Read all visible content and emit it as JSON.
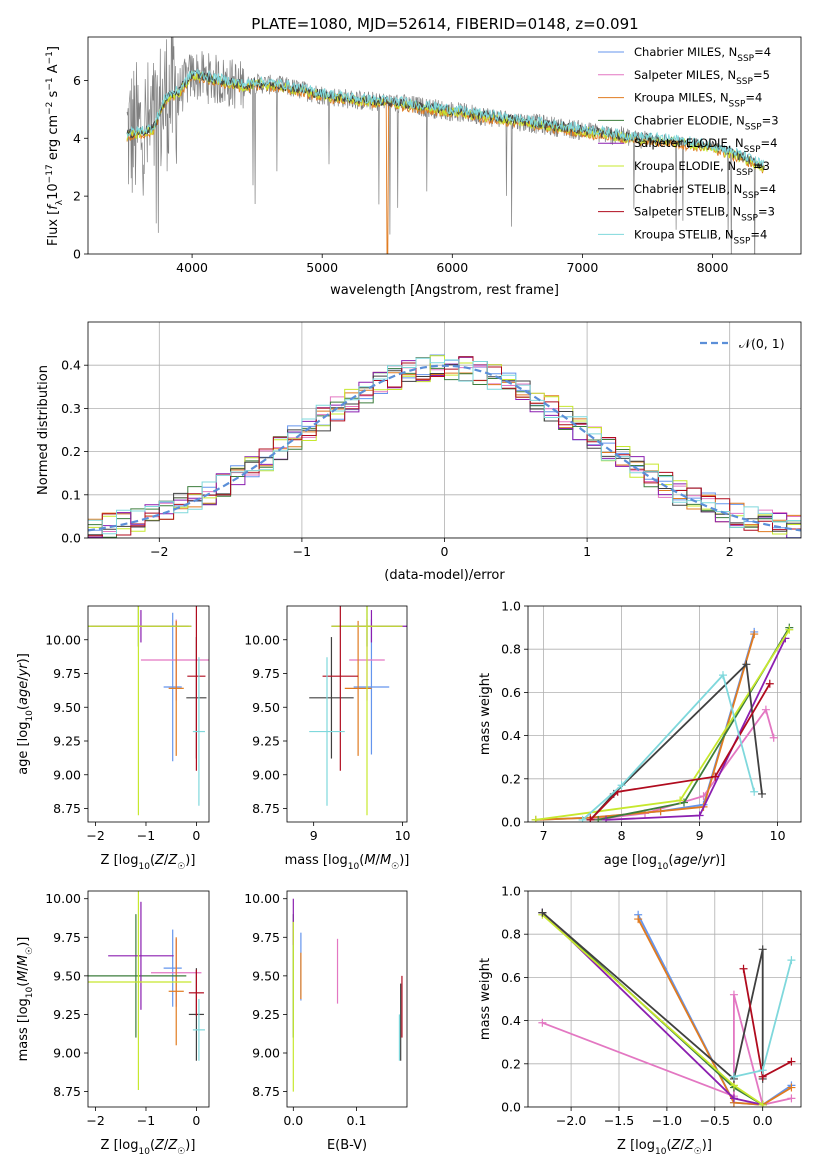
{
  "figure": {
    "title": "PLATE=1080, MJD=52614, FIBERID=0148, z=0.091"
  },
  "colors": {
    "Chabrier MILES": "#6495ed",
    "Salpeter MILES": "#e377c2",
    "Kroupa MILES": "#e07b20",
    "Chabrier ELODIE": "#3c7d3c",
    "Salpeter ELODIE": "#8b1fb0",
    "Kroupa ELODIE": "#c7e82e",
    "Chabrier STELIB": "#404040",
    "Salpeter STELIB": "#b00b1e",
    "Kroupa STELIB": "#7fd8dc",
    "data": "#808080",
    "normal": "#5b8fd8"
  },
  "chart_data": [
    {
      "id": "spectrum",
      "type": "line",
      "xlabel": "wavelength [Angstrom, rest frame]",
      "ylabel": "Flux [f_λ 10^-17 erg cm^-2 s^-1 A^-1]",
      "xlim": [
        3200,
        8680
      ],
      "ylim": [
        0,
        7.5
      ],
      "xticks": [
        4000,
        5000,
        6000,
        7000,
        8000
      ],
      "yticks": [
        0,
        2,
        4,
        6
      ],
      "legend_position": "top-right",
      "series": [
        {
          "name": "Chabrier MILES, N_SSP=4",
          "label_main": "Chabrier MILES, N",
          "label_sub": "SSP",
          "label_tail": "=4"
        },
        {
          "name": "Salpeter MILES, N_SSP=5",
          "label_main": "Salpeter MILES, N",
          "label_sub": "SSP",
          "label_tail": "=5"
        },
        {
          "name": "Kroupa MILES, N_SSP=4",
          "label_main": "Kroupa MILES, N",
          "label_sub": "SSP",
          "label_tail": "=4"
        },
        {
          "name": "Chabrier ELODIE, N_SSP=3",
          "label_main": "Chabrier ELODIE, N",
          "label_sub": "SSP",
          "label_tail": "=3"
        },
        {
          "name": "Salpeter ELODIE, N_SSP=4",
          "label_main": "Salpeter ELODIE, N",
          "label_sub": "SSP",
          "label_tail": "=4"
        },
        {
          "name": "Kroupa ELODIE, N_SSP=3",
          "label_main": "Kroupa ELODIE, N",
          "label_sub": "SSP",
          "label_tail": "=3"
        },
        {
          "name": "Chabrier STELIB, N_SSP=4",
          "label_main": "Chabrier STELIB, N",
          "label_sub": "SSP",
          "label_tail": "=4"
        },
        {
          "name": "Salpeter STELIB, N_SSP=3",
          "label_main": "Salpeter STELIB, N",
          "label_sub": "SSP",
          "label_tail": "=3"
        },
        {
          "name": "Kroupa STELIB, N_SSP=4",
          "label_main": "Kroupa STELIB, N",
          "label_sub": "SSP",
          "label_tail": "=4"
        }
      ],
      "continuum": {
        "x": [
          3500,
          3600,
          3700,
          3800,
          3900,
          4000,
          4100,
          4200,
          4300,
          4400,
          4500,
          4700,
          5000,
          5300,
          5600,
          5900,
          6200,
          6500,
          6800,
          7100,
          7400,
          7700,
          8000,
          8200,
          8400
        ],
        "y": [
          4.1,
          4.2,
          4.3,
          5.4,
          5.6,
          6.2,
          6.1,
          6.0,
          5.9,
          5.8,
          5.9,
          5.8,
          5.5,
          5.3,
          5.2,
          5.0,
          4.8,
          4.6,
          4.4,
          4.2,
          4.0,
          3.9,
          3.7,
          3.4,
          3.0
        ]
      }
    },
    {
      "id": "residuals",
      "type": "histogram",
      "xlabel": "(data-model)/error",
      "ylabel": "Normed distribution",
      "xlim": [
        -2.5,
        2.5
      ],
      "ylim": [
        0,
        0.5
      ],
      "xticks": [
        -2,
        -1,
        0,
        1,
        2
      ],
      "yticks": [
        0.0,
        0.1,
        0.2,
        0.3,
        0.4
      ],
      "grid": true,
      "legend_position": "top-right",
      "normal_label": "𝒩(0, 1)",
      "bins": {
        "start": -2.5,
        "width": 0.1,
        "count": 50
      }
    },
    {
      "id": "age-vs-Z",
      "type": "errorbar",
      "xlabel": "Z [log10(Z/Z☉)]",
      "ylabel": "age [log10(age/yr)]",
      "xlim": [
        -2.15,
        0.25
      ],
      "ylim": [
        8.65,
        10.25
      ],
      "xticks": [
        -2,
        -1,
        0
      ],
      "yticks": [
        8.75,
        9.0,
        9.25,
        9.5,
        9.75,
        10.0
      ],
      "points": [
        {
          "model": "Chabrier MILES",
          "x": -0.47,
          "y": 9.65,
          "xerr": 0.18,
          "yerr": 0.55
        },
        {
          "model": "Salpeter MILES",
          "x": -0.4,
          "y": 9.85,
          "xerr": 0.7,
          "yerr": 0.3
        },
        {
          "model": "Kroupa MILES",
          "x": -0.4,
          "y": 9.64,
          "xerr": 0.15,
          "yerr": 0.5
        },
        {
          "model": "Chabrier ELODIE",
          "x": -1.15,
          "y": 10.1,
          "xerr": 1.0,
          "yerr": 0.15
        },
        {
          "model": "Salpeter ELODIE",
          "x": -1.1,
          "y": 10.1,
          "xerr": 1.0,
          "yerr": 0.12
        },
        {
          "model": "Kroupa ELODIE",
          "x": -1.15,
          "y": 10.1,
          "xerr": 1.05,
          "yerr": 1.4
        },
        {
          "model": "Chabrier STELIB",
          "x": 0.0,
          "y": 9.57,
          "xerr": 0.2,
          "yerr": 0.45
        },
        {
          "model": "Salpeter STELIB",
          "x": 0.0,
          "y": 9.73,
          "xerr": 0.18,
          "yerr": 0.7
        },
        {
          "model": "Kroupa STELIB",
          "x": 0.05,
          "y": 9.32,
          "xerr": 0.12,
          "yerr": 0.55
        }
      ]
    },
    {
      "id": "age-vs-mass",
      "type": "errorbar",
      "xlabel": "mass [log10(M/M☉)]",
      "ylabel": "",
      "xlim": [
        8.7,
        10.05
      ],
      "ylim": [
        8.65,
        10.25
      ],
      "xticks": [
        9,
        10
      ],
      "yticks": [
        8.75,
        9.0,
        9.25,
        9.5,
        9.75,
        10.0
      ],
      "points": [
        {
          "model": "Chabrier MILES",
          "x": 9.65,
          "y": 9.65,
          "xerr": 0.2,
          "yerr": 0.5
        },
        {
          "model": "Salpeter MILES",
          "x": 9.6,
          "y": 9.85,
          "xerr": 0.2,
          "yerr": 0.3
        },
        {
          "model": "Kroupa MILES",
          "x": 9.5,
          "y": 9.64,
          "xerr": 0.15,
          "yerr": 0.5
        },
        {
          "model": "Chabrier ELODIE",
          "x": 9.6,
          "y": 10.1,
          "xerr": 0.4,
          "yerr": 0.15
        },
        {
          "model": "Salpeter ELODIE",
          "x": 9.65,
          "y": 10.1,
          "xerr": 0.45,
          "yerr": 0.12
        },
        {
          "model": "Kroupa ELODIE",
          "x": 9.6,
          "y": 10.1,
          "xerr": 0.4,
          "yerr": 1.4
        },
        {
          "model": "Chabrier STELIB",
          "x": 9.2,
          "y": 9.57,
          "xerr": 0.25,
          "yerr": 0.45
        },
        {
          "model": "Salpeter STELIB",
          "x": 9.3,
          "y": 9.73,
          "xerr": 0.2,
          "yerr": 0.7
        },
        {
          "model": "Kroupa STELIB",
          "x": 9.15,
          "y": 9.32,
          "xerr": 0.2,
          "yerr": 0.55
        }
      ]
    },
    {
      "id": "weight-vs-age",
      "type": "line",
      "xlabel": "age  [log10(age/yr)]",
      "ylabel": "mass weight",
      "xlim": [
        6.8,
        10.3
      ],
      "ylim": [
        0,
        1
      ],
      "xticks": [
        7,
        8,
        9,
        10
      ],
      "yticks": [
        0.0,
        0.2,
        0.4,
        0.6,
        0.8,
        1.0
      ],
      "grid": true,
      "series": [
        {
          "model": "Chabrier MILES",
          "x": [
            6.9,
            7.6,
            8.5,
            9.05,
            9.7
          ],
          "y": [
            0.01,
            0.02,
            0.05,
            0.08,
            0.88
          ]
        },
        {
          "model": "Salpeter MILES",
          "x": [
            7.6,
            8.3,
            9.05,
            9.85,
            9.95
          ],
          "y": [
            0.01,
            0.04,
            0.12,
            0.52,
            0.39
          ]
        },
        {
          "model": "Kroupa MILES",
          "x": [
            6.9,
            7.6,
            8.5,
            9.05,
            9.7
          ],
          "y": [
            0.01,
            0.02,
            0.05,
            0.07,
            0.87
          ]
        },
        {
          "model": "Chabrier ELODIE",
          "x": [
            7.7,
            8.8,
            10.15
          ],
          "y": [
            0.01,
            0.09,
            0.9
          ]
        },
        {
          "model": "Salpeter ELODIE",
          "x": [
            7.8,
            9.0,
            10.1
          ],
          "y": [
            0.01,
            0.03,
            0.85
          ]
        },
        {
          "model": "Kroupa ELODIE",
          "x": [
            6.9,
            8.75,
            10.15
          ],
          "y": [
            0.01,
            0.1,
            0.89
          ]
        },
        {
          "model": "Chabrier STELIB",
          "x": [
            7.6,
            7.9,
            9.6,
            9.8
          ],
          "y": [
            0.01,
            0.13,
            0.73,
            0.13
          ]
        },
        {
          "model": "Salpeter STELIB",
          "x": [
            7.6,
            7.95,
            9.2,
            9.9
          ],
          "y": [
            0.01,
            0.14,
            0.21,
            0.64
          ]
        },
        {
          "model": "Kroupa STELIB",
          "x": [
            7.5,
            8.0,
            9.3,
            9.7
          ],
          "y": [
            0.01,
            0.17,
            0.68,
            0.14
          ]
        }
      ]
    },
    {
      "id": "mass-vs-Z",
      "type": "errorbar",
      "xlabel": "Z [log10(Z/Z☉)]",
      "ylabel": "mass [log10(M/M☉)]",
      "xlim": [
        -2.15,
        0.25
      ],
      "ylim": [
        8.65,
        10.05
      ],
      "xticks": [
        -2,
        -1,
        0
      ],
      "yticks": [
        8.75,
        9.0,
        9.25,
        9.5,
        9.75,
        10.0
      ],
      "points": [
        {
          "model": "Chabrier MILES",
          "x": -0.47,
          "y": 9.55,
          "xerr": 0.18,
          "yerr": 0.25
        },
        {
          "model": "Salpeter MILES",
          "x": -0.4,
          "y": 9.52,
          "xerr": 0.5,
          "yerr": 0.22
        },
        {
          "model": "Kroupa MILES",
          "x": -0.4,
          "y": 9.4,
          "xerr": 0.15,
          "yerr": 0.35
        },
        {
          "model": "Chabrier ELODIE",
          "x": -1.2,
          "y": 9.5,
          "xerr": 1.0,
          "yerr": 0.4
        },
        {
          "model": "Salpeter ELODIE",
          "x": -1.1,
          "y": 9.63,
          "xerr": 0.65,
          "yerr": 0.35
        },
        {
          "model": "Kroupa ELODIE",
          "x": -1.15,
          "y": 9.46,
          "xerr": 1.05,
          "yerr": 0.7
        },
        {
          "model": "Chabrier STELIB",
          "x": 0.0,
          "y": 9.25,
          "xerr": 0.15,
          "yerr": 0.3
        },
        {
          "model": "Salpeter STELIB",
          "x": 0.0,
          "y": 9.39,
          "xerr": 0.15,
          "yerr": 0.15
        },
        {
          "model": "Kroupa STELIB",
          "x": 0.05,
          "y": 9.15,
          "xerr": 0.12,
          "yerr": 0.2
        }
      ]
    },
    {
      "id": "mass-vs-ebv",
      "type": "errorbar",
      "xlabel": "E(B-V)",
      "ylabel": "",
      "xlim": [
        -0.01,
        0.18
      ],
      "ylim": [
        8.65,
        10.05
      ],
      "xticks": [
        0.0,
        0.1
      ],
      "yticks": [
        8.75,
        9.0,
        9.25,
        9.5,
        9.75,
        10.0
      ],
      "points": [
        {
          "model": "Chabrier MILES",
          "x": 0.012,
          "y": 9.56,
          "xerr": 0,
          "yerr": 0.22
        },
        {
          "model": "Salpeter MILES",
          "x": 0.07,
          "y": 9.53,
          "xerr": 0,
          "yerr": 0.21
        },
        {
          "model": "Kroupa MILES",
          "x": 0.012,
          "y": 9.5,
          "xerr": 0,
          "yerr": 0.15
        },
        {
          "model": "Chabrier ELODIE",
          "x": 0.0,
          "y": 9.5,
          "xerr": 0,
          "yerr": 0.4
        },
        {
          "model": "Salpeter ELODIE",
          "x": 0.0,
          "y": 9.85,
          "xerr": 0,
          "yerr": 0.15
        },
        {
          "model": "Kroupa ELODIE",
          "x": 0.0,
          "y": 9.3,
          "xerr": 0,
          "yerr": 0.55
        },
        {
          "model": "Chabrier STELIB",
          "x": 0.17,
          "y": 9.2,
          "xerr": 0,
          "yerr": 0.25
        },
        {
          "model": "Salpeter STELIB",
          "x": 0.172,
          "y": 9.3,
          "xerr": 0,
          "yerr": 0.2
        },
        {
          "model": "Kroupa STELIB",
          "x": 0.168,
          "y": 9.1,
          "xerr": 0,
          "yerr": 0.15
        }
      ]
    },
    {
      "id": "weight-vs-Z",
      "type": "line",
      "xlabel": "Z [log10(Z/Z☉)]",
      "ylabel": "mass weight",
      "xlim": [
        -2.45,
        0.4
      ],
      "ylim": [
        0,
        1
      ],
      "xticks": [
        -2.0,
        -1.5,
        -1.0,
        -0.5,
        0.0
      ],
      "yticks": [
        0.0,
        0.2,
        0.4,
        0.6,
        0.8,
        1.0
      ],
      "grid": true,
      "series": [
        {
          "model": "Chabrier MILES",
          "x": [
            -1.3,
            -0.3,
            0.0,
            0.3
          ],
          "y": [
            0.89,
            0.02,
            0.01,
            0.1
          ]
        },
        {
          "model": "Salpeter MILES",
          "x": [
            -2.3,
            -0.3,
            -0.3,
            0.0,
            0.3
          ],
          "y": [
            0.39,
            0.05,
            0.52,
            0.01,
            0.04
          ]
        },
        {
          "model": "Kroupa MILES",
          "x": [
            -1.3,
            -0.3,
            0.0,
            0.3
          ],
          "y": [
            0.87,
            0.02,
            0.01,
            0.09
          ]
        },
        {
          "model": "Chabrier ELODIE",
          "x": [
            -2.3,
            -0.3,
            0.0
          ],
          "y": [
            0.9,
            0.09,
            0.01
          ]
        },
        {
          "model": "Salpeter ELODIE",
          "x": [
            -2.3,
            -0.3,
            0.0
          ],
          "y": [
            0.9,
            0.04,
            0.01
          ]
        },
        {
          "model": "Kroupa ELODIE",
          "x": [
            -2.3,
            -0.3,
            0.0
          ],
          "y": [
            0.89,
            0.1,
            0.01
          ]
        },
        {
          "model": "Chabrier STELIB",
          "x": [
            -2.3,
            -0.3,
            0.0,
            0.0
          ],
          "y": [
            0.9,
            0.13,
            0.73,
            0.13
          ]
        },
        {
          "model": "Salpeter STELIB",
          "x": [
            -0.2,
            0.0,
            0.3
          ],
          "y": [
            0.64,
            0.14,
            0.21
          ]
        },
        {
          "model": "Kroupa STELIB",
          "x": [
            -0.3,
            0.0,
            0.3
          ],
          "y": [
            0.14,
            0.17,
            0.68
          ]
        }
      ]
    }
  ]
}
